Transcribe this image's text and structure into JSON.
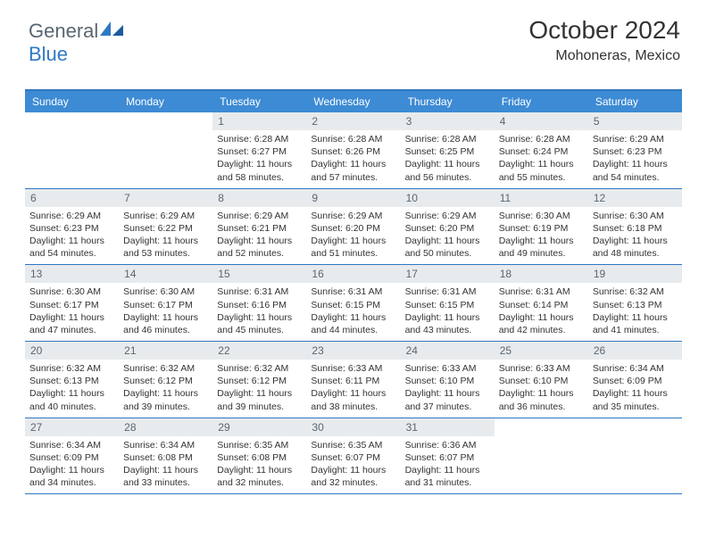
{
  "logo": {
    "word1": "General",
    "word2": "Blue"
  },
  "title": "October 2024",
  "location": "Mohoneras, Mexico",
  "colors": {
    "header_bg": "#3d8bd4",
    "border": "#2f78c4",
    "daynum_bg": "#e8ebed",
    "daynum_fg": "#5a6670",
    "text": "#333333",
    "logo_gray": "#5a6670",
    "logo_blue": "#2f78c4"
  },
  "dayNames": [
    "Sunday",
    "Monday",
    "Tuesday",
    "Wednesday",
    "Thursday",
    "Friday",
    "Saturday"
  ],
  "weeks": [
    [
      {
        "n": "",
        "sr": "",
        "ss": "",
        "dl": ""
      },
      {
        "n": "",
        "sr": "",
        "ss": "",
        "dl": ""
      },
      {
        "n": "1",
        "sr": "Sunrise: 6:28 AM",
        "ss": "Sunset: 6:27 PM",
        "dl": "Daylight: 11 hours and 58 minutes."
      },
      {
        "n": "2",
        "sr": "Sunrise: 6:28 AM",
        "ss": "Sunset: 6:26 PM",
        "dl": "Daylight: 11 hours and 57 minutes."
      },
      {
        "n": "3",
        "sr": "Sunrise: 6:28 AM",
        "ss": "Sunset: 6:25 PM",
        "dl": "Daylight: 11 hours and 56 minutes."
      },
      {
        "n": "4",
        "sr": "Sunrise: 6:28 AM",
        "ss": "Sunset: 6:24 PM",
        "dl": "Daylight: 11 hours and 55 minutes."
      },
      {
        "n": "5",
        "sr": "Sunrise: 6:29 AM",
        "ss": "Sunset: 6:23 PM",
        "dl": "Daylight: 11 hours and 54 minutes."
      }
    ],
    [
      {
        "n": "6",
        "sr": "Sunrise: 6:29 AM",
        "ss": "Sunset: 6:23 PM",
        "dl": "Daylight: 11 hours and 54 minutes."
      },
      {
        "n": "7",
        "sr": "Sunrise: 6:29 AM",
        "ss": "Sunset: 6:22 PM",
        "dl": "Daylight: 11 hours and 53 minutes."
      },
      {
        "n": "8",
        "sr": "Sunrise: 6:29 AM",
        "ss": "Sunset: 6:21 PM",
        "dl": "Daylight: 11 hours and 52 minutes."
      },
      {
        "n": "9",
        "sr": "Sunrise: 6:29 AM",
        "ss": "Sunset: 6:20 PM",
        "dl": "Daylight: 11 hours and 51 minutes."
      },
      {
        "n": "10",
        "sr": "Sunrise: 6:29 AM",
        "ss": "Sunset: 6:20 PM",
        "dl": "Daylight: 11 hours and 50 minutes."
      },
      {
        "n": "11",
        "sr": "Sunrise: 6:30 AM",
        "ss": "Sunset: 6:19 PM",
        "dl": "Daylight: 11 hours and 49 minutes."
      },
      {
        "n": "12",
        "sr": "Sunrise: 6:30 AM",
        "ss": "Sunset: 6:18 PM",
        "dl": "Daylight: 11 hours and 48 minutes."
      }
    ],
    [
      {
        "n": "13",
        "sr": "Sunrise: 6:30 AM",
        "ss": "Sunset: 6:17 PM",
        "dl": "Daylight: 11 hours and 47 minutes."
      },
      {
        "n": "14",
        "sr": "Sunrise: 6:30 AM",
        "ss": "Sunset: 6:17 PM",
        "dl": "Daylight: 11 hours and 46 minutes."
      },
      {
        "n": "15",
        "sr": "Sunrise: 6:31 AM",
        "ss": "Sunset: 6:16 PM",
        "dl": "Daylight: 11 hours and 45 minutes."
      },
      {
        "n": "16",
        "sr": "Sunrise: 6:31 AM",
        "ss": "Sunset: 6:15 PM",
        "dl": "Daylight: 11 hours and 44 minutes."
      },
      {
        "n": "17",
        "sr": "Sunrise: 6:31 AM",
        "ss": "Sunset: 6:15 PM",
        "dl": "Daylight: 11 hours and 43 minutes."
      },
      {
        "n": "18",
        "sr": "Sunrise: 6:31 AM",
        "ss": "Sunset: 6:14 PM",
        "dl": "Daylight: 11 hours and 42 minutes."
      },
      {
        "n": "19",
        "sr": "Sunrise: 6:32 AM",
        "ss": "Sunset: 6:13 PM",
        "dl": "Daylight: 11 hours and 41 minutes."
      }
    ],
    [
      {
        "n": "20",
        "sr": "Sunrise: 6:32 AM",
        "ss": "Sunset: 6:13 PM",
        "dl": "Daylight: 11 hours and 40 minutes."
      },
      {
        "n": "21",
        "sr": "Sunrise: 6:32 AM",
        "ss": "Sunset: 6:12 PM",
        "dl": "Daylight: 11 hours and 39 minutes."
      },
      {
        "n": "22",
        "sr": "Sunrise: 6:32 AM",
        "ss": "Sunset: 6:12 PM",
        "dl": "Daylight: 11 hours and 39 minutes."
      },
      {
        "n": "23",
        "sr": "Sunrise: 6:33 AM",
        "ss": "Sunset: 6:11 PM",
        "dl": "Daylight: 11 hours and 38 minutes."
      },
      {
        "n": "24",
        "sr": "Sunrise: 6:33 AM",
        "ss": "Sunset: 6:10 PM",
        "dl": "Daylight: 11 hours and 37 minutes."
      },
      {
        "n": "25",
        "sr": "Sunrise: 6:33 AM",
        "ss": "Sunset: 6:10 PM",
        "dl": "Daylight: 11 hours and 36 minutes."
      },
      {
        "n": "26",
        "sr": "Sunrise: 6:34 AM",
        "ss": "Sunset: 6:09 PM",
        "dl": "Daylight: 11 hours and 35 minutes."
      }
    ],
    [
      {
        "n": "27",
        "sr": "Sunrise: 6:34 AM",
        "ss": "Sunset: 6:09 PM",
        "dl": "Daylight: 11 hours and 34 minutes."
      },
      {
        "n": "28",
        "sr": "Sunrise: 6:34 AM",
        "ss": "Sunset: 6:08 PM",
        "dl": "Daylight: 11 hours and 33 minutes."
      },
      {
        "n": "29",
        "sr": "Sunrise: 6:35 AM",
        "ss": "Sunset: 6:08 PM",
        "dl": "Daylight: 11 hours and 32 minutes."
      },
      {
        "n": "30",
        "sr": "Sunrise: 6:35 AM",
        "ss": "Sunset: 6:07 PM",
        "dl": "Daylight: 11 hours and 32 minutes."
      },
      {
        "n": "31",
        "sr": "Sunrise: 6:36 AM",
        "ss": "Sunset: 6:07 PM",
        "dl": "Daylight: 11 hours and 31 minutes."
      },
      {
        "n": "",
        "sr": "",
        "ss": "",
        "dl": ""
      },
      {
        "n": "",
        "sr": "",
        "ss": "",
        "dl": ""
      }
    ]
  ]
}
